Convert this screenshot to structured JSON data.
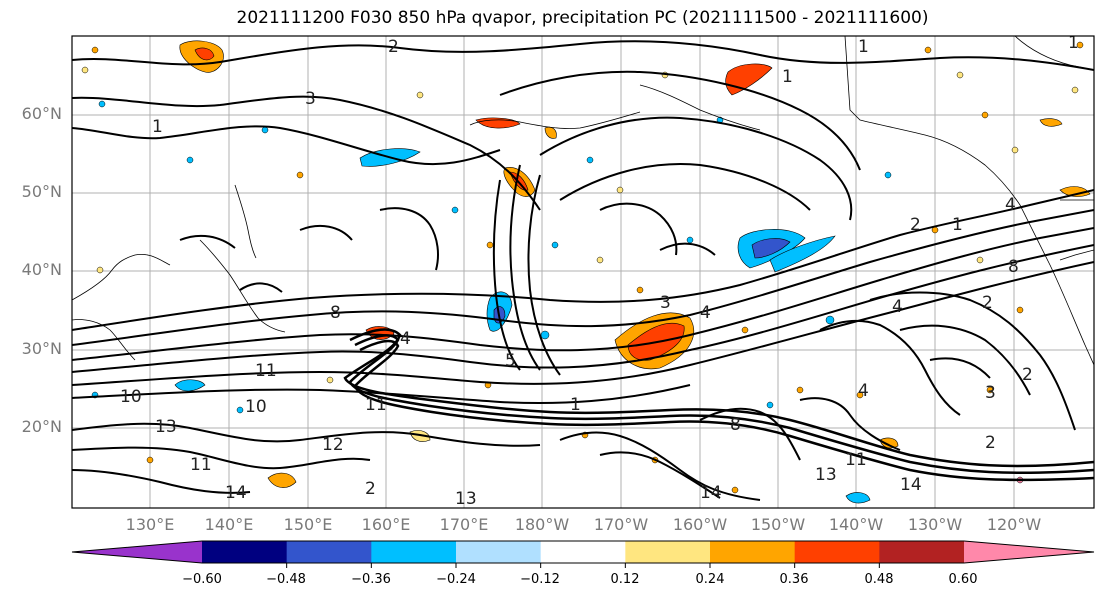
{
  "title": "2021111200 F030 850 hPa qvapor, precipitation PC (2021111500 - 2021111600)",
  "lat_labels": [
    "60°N",
    "50°N",
    "40°N",
    "30°N",
    "20°N"
  ],
  "lon_labels": [
    "130°E",
    "140°E",
    "150°E",
    "160°E",
    "170°E",
    "180°W",
    "170°W",
    "160°W",
    "150°W",
    "140°W",
    "130°W",
    "120°W"
  ],
  "colorbar": {
    "ticks": [
      "−0.60",
      "−0.48",
      "−0.36",
      "−0.24",
      "−0.12",
      "0.12",
      "0.24",
      "0.36",
      "0.48",
      "0.60"
    ],
    "colors": [
      "#9933cc",
      "#000080",
      "#3355cc",
      "#00bfff",
      "#b0e0ff",
      "#ffffff",
      "#ffe680",
      "#ffa500",
      "#ff4000",
      "#b22222",
      "#ff88aa"
    ]
  },
  "contour_labels": [
    "1",
    "2",
    "3",
    "4",
    "8",
    "10",
    "11",
    "12",
    "13",
    "14"
  ]
}
